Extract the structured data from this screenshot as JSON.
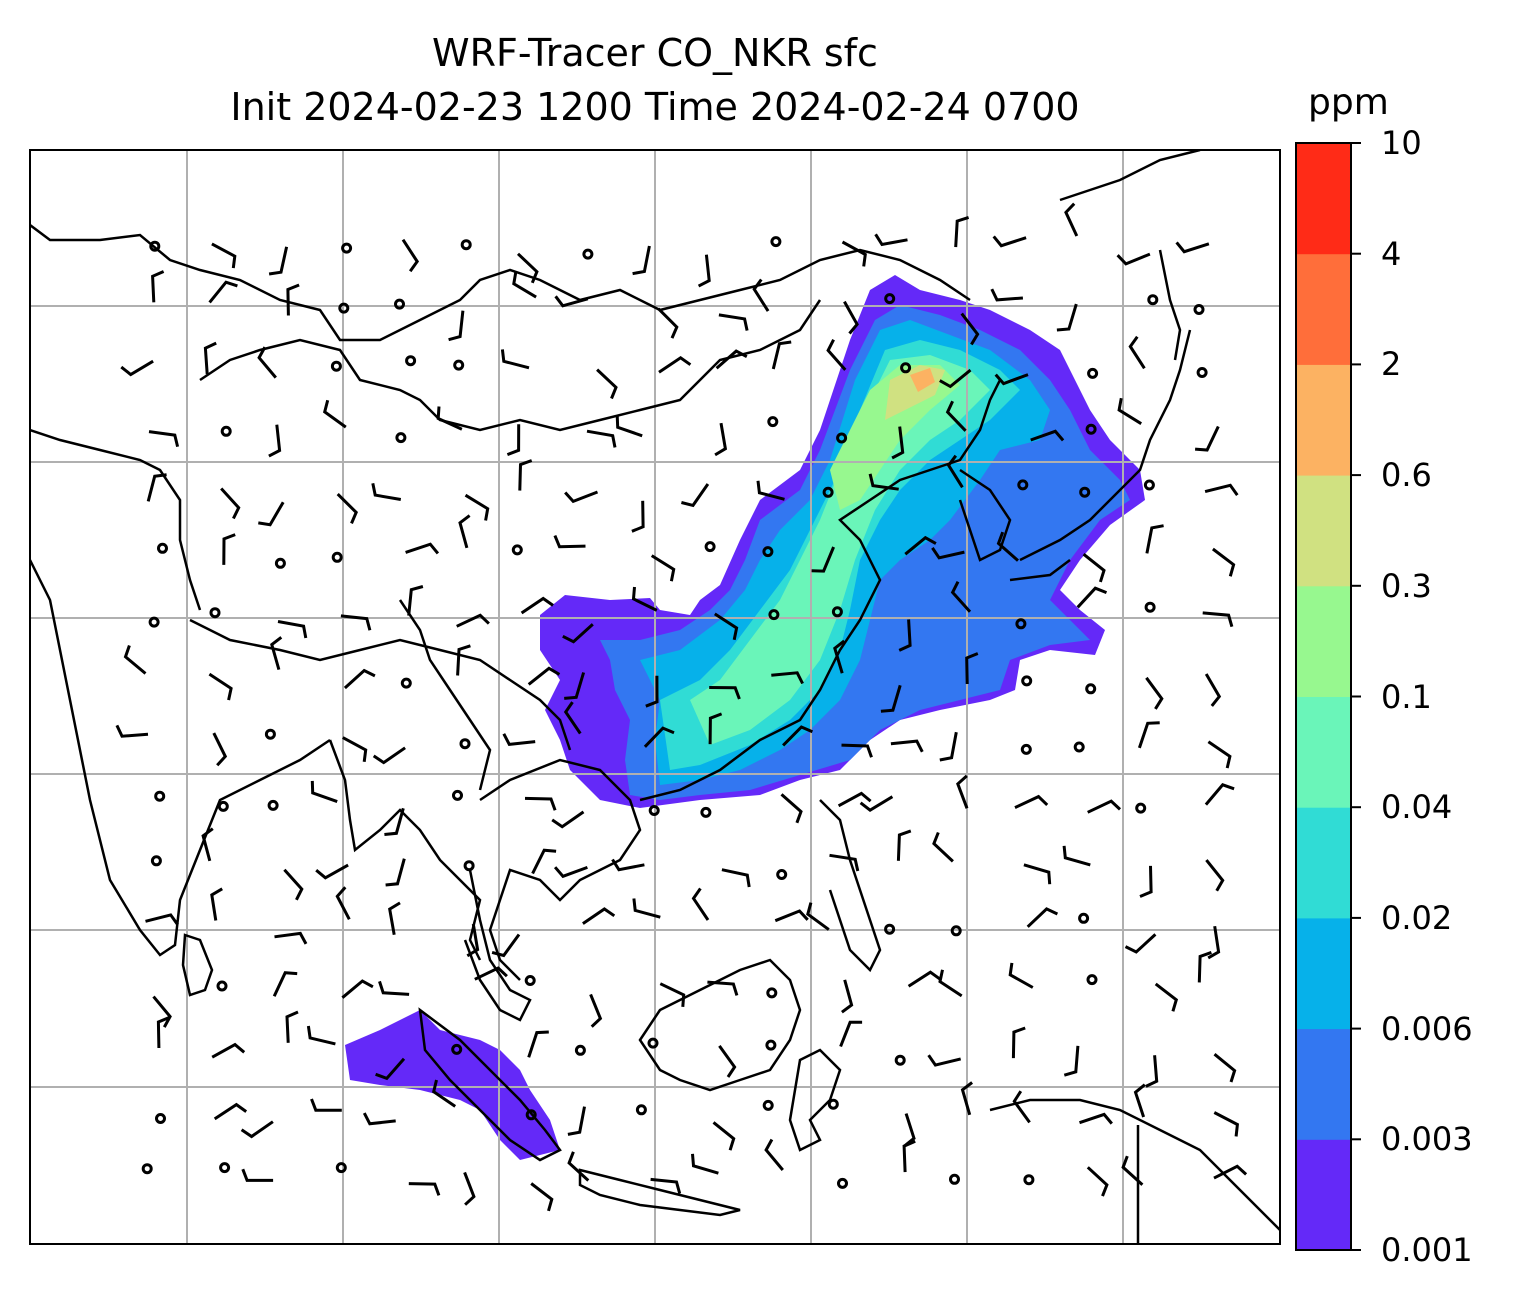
{
  "map": {
    "title": "WRF-Tracer CO_NKR sfc",
    "subtitle": "Init 2024-02-23 1200 Time 2024-02-24 0700",
    "field": "CO_NKR",
    "level": "sfc",
    "init_time": "2024-02-23 1200",
    "valid_time": "2024-02-24 0700",
    "region": "East and Southeast Asia",
    "gridlines": true,
    "wind_barbs": true,
    "coastlines": true,
    "country_borders": true
  },
  "colorbar": {
    "unit": "ppm",
    "levels": [
      "0.001",
      "0.003",
      "0.006",
      "0.02",
      "0.04",
      "0.1",
      "0.3",
      "0.6",
      "2",
      "4",
      "10"
    ],
    "colors": [
      "#6429f8",
      "#3377f1",
      "#06b1ea",
      "#30dcd5",
      "#6af5b9",
      "#97f88f",
      "#d0e181",
      "#fcb262",
      "#ff6e3a",
      "#ff2b17"
    ]
  },
  "colors": {
    "coastline": "#000000",
    "gridline": "#b0b0b0",
    "barb": "#000000"
  }
}
